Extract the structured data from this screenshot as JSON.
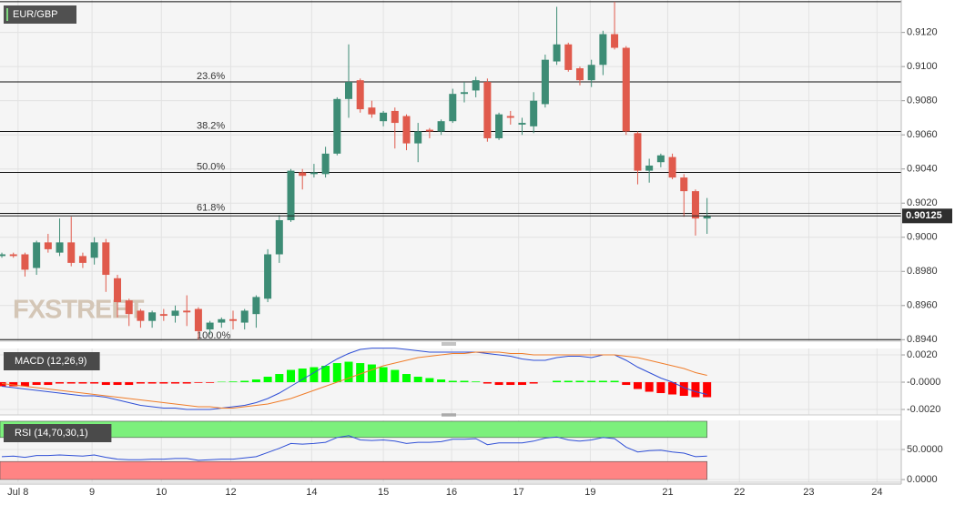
{
  "chart_data": [
    {
      "type": "candlestick",
      "title": "EUR/GBP",
      "watermark": "FXSTREET",
      "x": [
        0,
        1,
        2,
        3,
        4,
        5,
        6,
        7,
        8,
        9,
        10,
        11,
        12,
        13,
        14,
        15,
        16,
        17,
        18,
        19,
        20,
        21,
        22,
        23,
        24,
        25,
        26,
        27,
        28,
        29,
        30,
        31,
        32,
        33,
        34,
        35,
        36,
        37,
        38,
        39,
        40,
        41,
        42,
        43,
        44,
        45,
        46,
        47,
        48,
        49,
        50,
        51,
        52,
        53,
        54,
        55,
        56,
        57,
        58,
        59,
        60,
        61
      ],
      "open": [
        0.8989,
        0.899,
        0.899,
        0.8982,
        0.8997,
        0.8991,
        0.8997,
        0.8989,
        0.8988,
        0.8997,
        0.8976,
        0.8963,
        0.8957,
        0.8951,
        0.8955,
        0.8954,
        0.8957,
        0.8958,
        0.8946,
        0.895,
        0.8952,
        0.895,
        0.8955,
        0.8964,
        0.899,
        0.901,
        0.9038,
        0.9037,
        0.9037,
        0.9049,
        0.9081,
        0.9092,
        0.9076,
        0.9068,
        0.9074,
        0.9071,
        0.9055,
        0.9063,
        0.9062,
        0.9068,
        0.9084,
        0.9086,
        0.9091,
        0.9058,
        0.9071,
        0.9066,
        0.9065,
        0.9078,
        0.9103,
        0.9113,
        0.9099,
        0.9092,
        0.9101,
        0.9119,
        0.9111,
        0.9061,
        0.9039,
        0.9044,
        0.9047,
        0.9035,
        0.9027,
        0.9011
      ],
      "high": [
        0.8991,
        0.8991,
        0.8991,
        0.8998,
        0.9002,
        0.9011,
        0.9012,
        0.8991,
        0.9,
        0.8999,
        0.8978,
        0.8964,
        0.8958,
        0.8957,
        0.8958,
        0.896,
        0.8966,
        0.8959,
        0.8951,
        0.8953,
        0.8957,
        0.8958,
        0.8966,
        0.8993,
        0.9013,
        0.904,
        0.904,
        0.9043,
        0.9053,
        0.9082,
        0.9113,
        0.9093,
        0.908,
        0.9074,
        0.9076,
        0.9072,
        0.9067,
        0.9064,
        0.9069,
        0.9087,
        0.9091,
        0.9094,
        0.9093,
        0.9073,
        0.9074,
        0.907,
        0.9085,
        0.9107,
        0.9135,
        0.9114,
        0.91,
        0.9104,
        0.9121,
        0.9138,
        0.9112,
        0.9062,
        0.9046,
        0.9049,
        0.9049,
        0.9037,
        0.9028,
        0.9023
      ],
      "low": [
        0.8988,
        0.8988,
        0.8977,
        0.8978,
        0.8991,
        0.8989,
        0.8983,
        0.8982,
        0.8984,
        0.8968,
        0.8953,
        0.8948,
        0.8947,
        0.8947,
        0.8951,
        0.895,
        0.8948,
        0.894,
        0.8943,
        0.8947,
        0.8946,
        0.8946,
        0.8947,
        0.8962,
        0.8985,
        0.9009,
        0.9028,
        0.9035,
        0.9035,
        0.9048,
        0.907,
        0.9073,
        0.907,
        0.9065,
        0.9052,
        0.9051,
        0.9044,
        0.9058,
        0.906,
        0.9067,
        0.9079,
        0.9082,
        0.9056,
        0.9057,
        0.9066,
        0.906,
        0.9061,
        0.9076,
        0.9101,
        0.9097,
        0.9089,
        0.9088,
        0.9095,
        0.911,
        0.906,
        0.9031,
        0.9032,
        0.9041,
        0.9034,
        0.9012,
        0.9001,
        0.9002
      ],
      "close": [
        0.899,
        0.8989,
        0.8981,
        0.8997,
        0.8993,
        0.8997,
        0.8985,
        0.8985,
        0.8997,
        0.8978,
        0.8962,
        0.8955,
        0.8951,
        0.8956,
        0.8954,
        0.8957,
        0.8956,
        0.8945,
        0.895,
        0.8952,
        0.8951,
        0.8957,
        0.8965,
        0.899,
        0.901,
        0.9039,
        0.9036,
        0.9038,
        0.9049,
        0.9081,
        0.9091,
        0.9075,
        0.9072,
        0.9073,
        0.9067,
        0.9055,
        0.9062,
        0.9062,
        0.9068,
        0.9084,
        0.9085,
        0.9092,
        0.9058,
        0.9072,
        0.907,
        0.9067,
        0.908,
        0.9104,
        0.9113,
        0.9098,
        0.9092,
        0.9101,
        0.9119,
        0.9111,
        0.9062,
        0.9039,
        0.9042,
        0.9048,
        0.9035,
        0.9027,
        0.9011,
        0.90125
      ],
      "up_color": "#3d8c75",
      "down_color": "#e05a4c",
      "levels": [
        {
          "value": 0.9138
        },
        {
          "value": 0.9091,
          "label": "23.6%"
        },
        {
          "value": 0.9062,
          "label": "38.2%"
        },
        {
          "value": 0.9038,
          "label": "50.0%"
        },
        {
          "value": 0.9014,
          "label": "61.8%"
        },
        {
          "value": 0.894,
          "label": "100.0%"
        }
      ],
      "last_price": 0.90125,
      "xlim": [
        -0.16,
        77.8
      ],
      "ylim": [
        0.89391,
        0.9139
      ],
      "yticks": [
        {
          "value": 0.912,
          "label": "0.9120"
        },
        {
          "value": 0.91,
          "label": "0.9100"
        },
        {
          "value": 0.908,
          "label": "0.9080"
        },
        {
          "value": 0.906,
          "label": "0.9060"
        },
        {
          "value": 0.904,
          "label": "0.9040"
        },
        {
          "value": 0.902,
          "label": "0.9020"
        },
        {
          "value": 0.9,
          "label": "0.9000"
        },
        {
          "value": 0.898,
          "label": "0.8980"
        },
        {
          "value": 0.896,
          "label": "0.8960"
        },
        {
          "value": 0.894,
          "label": "0.8940"
        }
      ],
      "grid": true
    },
    {
      "type": "macd",
      "title": "MACD (12,26,9)",
      "series": [
        {
          "kind": "bar",
          "up_color": "#00ff00",
          "down_color": "#ff0000",
          "values": [
            -0.0003,
            -0.0003,
            -0.0003,
            -0.0002,
            -0.0002,
            -0.0001,
            -0.0001,
            -0.0001,
            -0.0001,
            -0.0002,
            -0.0002,
            -0.0002,
            -0.0001,
            -0.0001,
            -0.0001,
            -0.0001,
            -0.0001,
            -5e-05,
            -5e-05,
            3e-05,
            5e-05,
            0.0001,
            0.0002,
            0.0004,
            0.0006,
            0.0009,
            0.001,
            0.0011,
            0.0012,
            0.0014,
            0.0015,
            0.0014,
            0.0013,
            0.0011,
            0.0009,
            0.0006,
            0.0004,
            0.0003,
            0.0002,
            0.0001,
            0.0001,
            5e-05,
            -0.0001,
            -0.0002,
            -0.0002,
            -0.0002,
            -0.0001,
            0,
            0.0001,
            0.0001,
            0.0001,
            0.0001,
            0.0001,
            0.0001,
            -0.0002,
            -0.0005,
            -0.0007,
            -0.0008,
            -0.0009,
            -0.001,
            -0.0011,
            -0.0011
          ]
        },
        {
          "kind": "line",
          "color": "#2f4fd6",
          "values": [
            -0.0003,
            -0.0004,
            -0.0005,
            -0.0006,
            -0.0007,
            -0.0008,
            -0.0009,
            -0.001,
            -0.001,
            -0.0011,
            -0.0013,
            -0.0015,
            -0.0017,
            -0.0018,
            -0.0019,
            -0.0019,
            -0.002,
            -0.002,
            -0.002,
            -0.0019,
            -0.0018,
            -0.0017,
            -0.0015,
            -0.0012,
            -0.0008,
            -0.0003,
            0.0002,
            0.0007,
            0.0012,
            0.0017,
            0.0021,
            0.0024,
            0.0025,
            0.0025,
            0.0025,
            0.0024,
            0.0023,
            0.0022,
            0.0022,
            0.0022,
            0.0022,
            0.0022,
            0.0021,
            0.002,
            0.0019,
            0.0017,
            0.0016,
            0.0016,
            0.0018,
            0.0019,
            0.0019,
            0.0018,
            0.002,
            0.002,
            0.0016,
            0.0011,
            0.0007,
            0.0003,
            0.0,
            -0.0004,
            -0.0007,
            -0.0009
          ]
        },
        {
          "kind": "line",
          "color": "#f07d2a",
          "values": [
            -0.0001,
            -0.0002,
            -0.0003,
            -0.0004,
            -0.0005,
            -0.0006,
            -0.0007,
            -0.0008,
            -0.0009,
            -0.001,
            -0.0011,
            -0.0012,
            -0.0013,
            -0.0014,
            -0.0015,
            -0.0016,
            -0.0017,
            -0.0018,
            -0.0018,
            -0.0019,
            -0.0019,
            -0.0018,
            -0.0017,
            -0.0016,
            -0.0014,
            -0.0012,
            -0.0009,
            -0.0006,
            -0.0003,
            0.0,
            0.0003,
            0.0006,
            0.0009,
            0.0012,
            0.0014,
            0.0016,
            0.0018,
            0.0019,
            0.002,
            0.0021,
            0.0021,
            0.0022,
            0.0022,
            0.0022,
            0.0021,
            0.0021,
            0.002,
            0.002,
            0.002,
            0.002,
            0.002,
            0.002,
            0.002,
            0.002,
            0.0019,
            0.0018,
            0.0016,
            0.0014,
            0.0012,
            0.001,
            0.0007,
            0.0005
          ]
        }
      ],
      "xlim": [
        -0.16,
        77.8
      ],
      "ylim": [
        -0.0024,
        0.00247
      ],
      "yticks": [
        {
          "value": 0.002,
          "label": "0.0020"
        },
        {
          "value": 0,
          "label": "-0.0000"
        },
        {
          "value": -0.002,
          "label": "-0.0020"
        }
      ],
      "grid": true
    },
    {
      "type": "rsi",
      "title": "RSI (14,70,30,1)",
      "series": [
        {
          "kind": "line",
          "color": "#2f4fd6",
          "values": [
            38,
            39,
            37,
            40,
            40,
            41,
            40,
            39,
            41,
            37,
            34,
            33,
            33,
            34,
            34,
            35,
            35,
            32,
            33,
            34,
            34,
            36,
            38,
            45,
            52,
            60,
            59,
            60,
            62,
            70,
            73,
            66,
            65,
            66,
            64,
            60,
            62,
            62,
            63,
            67,
            67,
            68,
            58,
            61,
            61,
            61,
            64,
            69,
            71,
            66,
            64,
            66,
            70,
            68,
            54,
            46,
            48,
            49,
            46,
            44,
            38,
            39
          ]
        }
      ],
      "zones": [
        {
          "from": 70,
          "to": 97,
          "color": "#7cf07c"
        },
        {
          "from": 0,
          "to": 30,
          "color": "#ff8484"
        }
      ],
      "xlim": [
        -0.16,
        77.8
      ],
      "ylim": [
        -4.5,
        98.5
      ],
      "yticks": [
        {
          "value": 50,
          "label": "50.0000"
        },
        {
          "value": 0,
          "label": "0.0000"
        }
      ],
      "xticks": [
        {
          "value": 1.4,
          "label": "Jul 8"
        },
        {
          "value": 7.8,
          "label": "9"
        },
        {
          "value": 13.8,
          "label": "10"
        },
        {
          "value": 19.8,
          "label": "12"
        },
        {
          "value": 26.8,
          "label": "14"
        },
        {
          "value": 33,
          "label": "15"
        },
        {
          "value": 38.9,
          "label": "16"
        },
        {
          "value": 44.7,
          "label": "17"
        },
        {
          "value": 50.9,
          "label": "19"
        },
        {
          "value": 57.6,
          "label": "21"
        },
        {
          "value": 63.8,
          "label": "22"
        },
        {
          "value": 69.8,
          "label": "23"
        },
        {
          "value": 75.7,
          "label": "24"
        }
      ],
      "grid": true
    }
  ]
}
